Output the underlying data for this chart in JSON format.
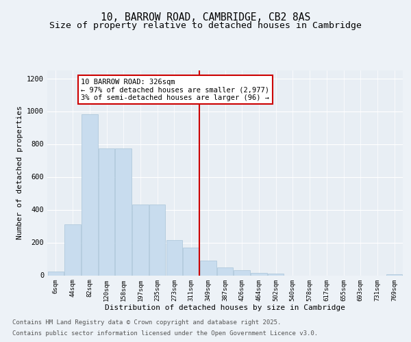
{
  "title_line1": "10, BARROW ROAD, CAMBRIDGE, CB2 8AS",
  "title_line2": "Size of property relative to detached houses in Cambridge",
  "xlabel": "Distribution of detached houses by size in Cambridge",
  "ylabel": "Number of detached properties",
  "bar_labels": [
    "6sqm",
    "44sqm",
    "82sqm",
    "120sqm",
    "158sqm",
    "197sqm",
    "235sqm",
    "273sqm",
    "311sqm",
    "349sqm",
    "387sqm",
    "426sqm",
    "464sqm",
    "502sqm",
    "540sqm",
    "578sqm",
    "617sqm",
    "655sqm",
    "693sqm",
    "731sqm",
    "769sqm"
  ],
  "bar_values": [
    25,
    310,
    980,
    775,
    775,
    430,
    430,
    215,
    170,
    90,
    48,
    30,
    15,
    10,
    0,
    0,
    0,
    0,
    0,
    0,
    8
  ],
  "bar_color": "#c8dcee",
  "bar_edgecolor": "#a8c4d8",
  "vline_x_index": 8,
  "vline_color": "#cc0000",
  "annotation_text": "10 BARROW ROAD: 326sqm\n← 97% of detached houses are smaller (2,977)\n3% of semi-detached houses are larger (96) →",
  "annotation_box_color": "#cc0000",
  "ylim": [
    0,
    1250
  ],
  "yticks": [
    0,
    200,
    400,
    600,
    800,
    1000,
    1200
  ],
  "background_color": "#e8eef4",
  "plot_bg_color": "#e8eef4",
  "fig_bg_color": "#edf2f7",
  "footer_line1": "Contains HM Land Registry data © Crown copyright and database right 2025.",
  "footer_line2": "Contains public sector information licensed under the Open Government Licence v3.0.",
  "grid_color": "#ffffff",
  "title_fontsize": 10.5,
  "subtitle_fontsize": 9.5,
  "axis_label_fontsize": 8,
  "tick_label_fontsize": 6.5,
  "annotation_fontsize": 7.5,
  "footer_fontsize": 6.5
}
